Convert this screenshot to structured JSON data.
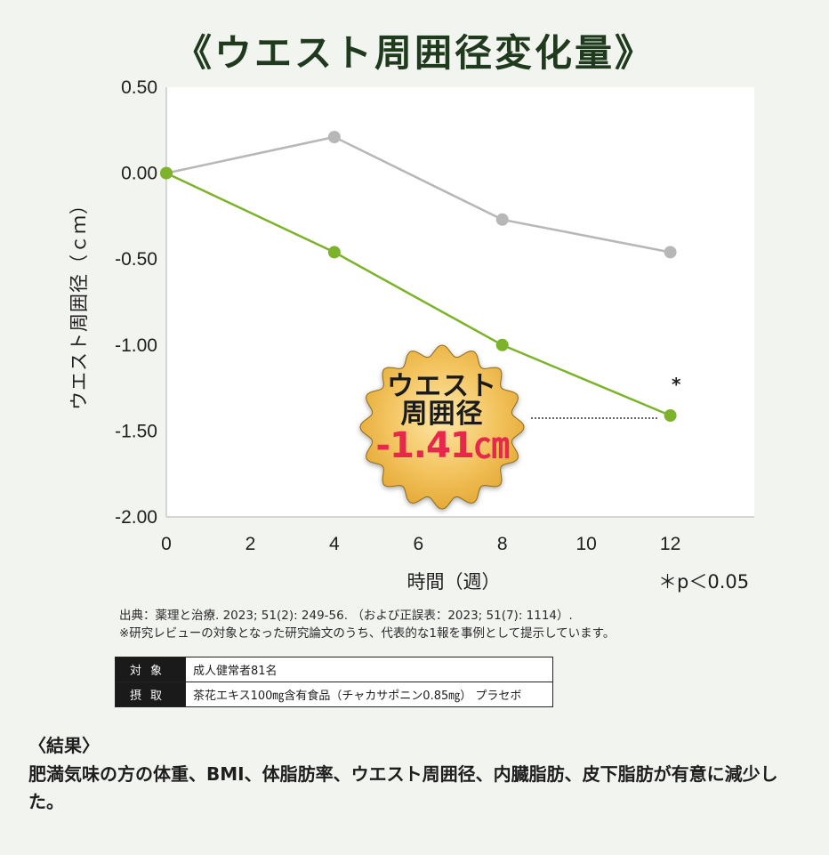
{
  "title": "《ウエスト周囲径変化量》",
  "chart_data": {
    "type": "line",
    "x": [
      0,
      4,
      8,
      12
    ],
    "series": [
      {
        "values": [
          0.0,
          0.21,
          -0.27,
          -0.46
        ],
        "color": "#b7b7b7"
      },
      {
        "values": [
          0.0,
          -0.46,
          -1.0,
          -1.41
        ],
        "color": "#7cb32a"
      }
    ],
    "xlabel": "時間（週）",
    "ylabel": "ウエスト周囲径（ｃｍ）",
    "xlim": [
      0,
      14
    ],
    "ylim": [
      -2.0,
      0.5
    ],
    "xticks": [
      0,
      2,
      4,
      6,
      8,
      10,
      12
    ],
    "yticks": [
      0.5,
      0.0,
      -0.5,
      -1.0,
      -1.5,
      -2.0
    ],
    "ytick_labels": [
      "0.50",
      "0.00",
      "-0.50",
      "-1.00",
      "-1.50",
      "-2.00"
    ],
    "plot_background": "#ffffff",
    "significance_marker": "*",
    "significance_note": "＊p＜0.05",
    "badge": {
      "line1": "ウエスト",
      "line2": "周囲径",
      "value": "-1.41㎝",
      "value_color": "#e8274c",
      "fill": "#e8a93a"
    }
  },
  "source": {
    "line1": "出典：薬理と治療. 2023; 51(2): 249-56. （および正誤表：2023; 51(7): 1114）.",
    "line2": "※研究レビューの対象となった研究論文のうち、代表的な1報を事例として提示しています。"
  },
  "info_table": [
    {
      "label": "対象",
      "value": "成人健常者81名"
    },
    {
      "label": "摂取",
      "value": "茶花エキス100㎎含有食品（チャカサポニン0.85㎎） プラセボ"
    }
  ],
  "result": {
    "heading": "〈結果〉",
    "text": "肥満気味の方の体重、BMI、体脂肪率、ウエスト周囲径、内臓脂肪、皮下脂肪が有意に減少した。"
  }
}
